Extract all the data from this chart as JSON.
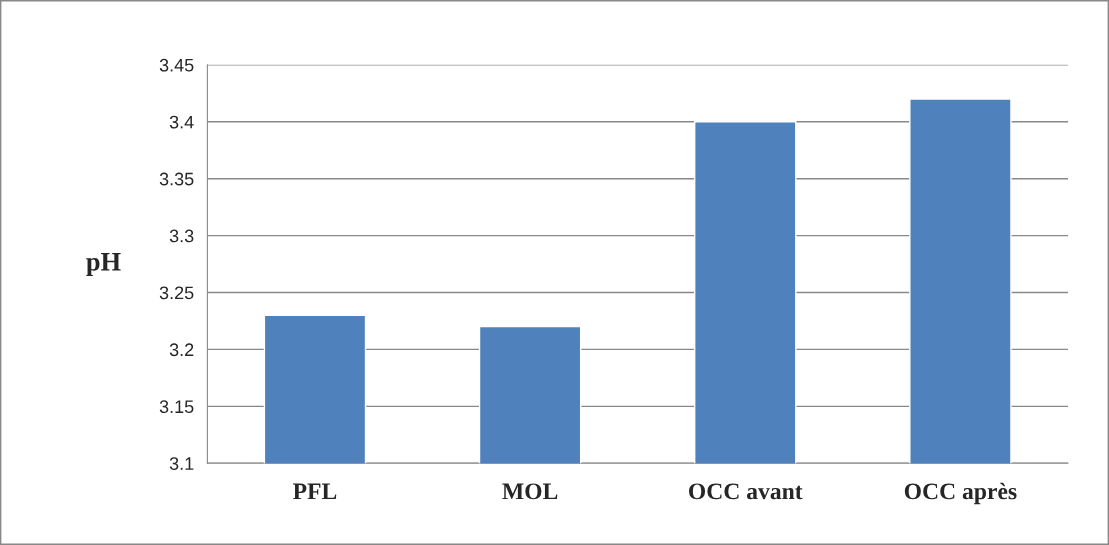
{
  "chart_data": {
    "type": "bar",
    "ylabel": "pH",
    "categories": [
      "PFL",
      "MOL",
      "OCC avant",
      "OCC après"
    ],
    "values": [
      3.23,
      3.22,
      3.4,
      3.42
    ],
    "color": "#4f81bd",
    "ylim": [
      3.1,
      3.45
    ],
    "yticks": [
      3.1,
      3.15,
      3.2,
      3.25,
      3.3,
      3.35,
      3.4,
      3.45
    ],
    "grid": "y",
    "legend": false
  }
}
